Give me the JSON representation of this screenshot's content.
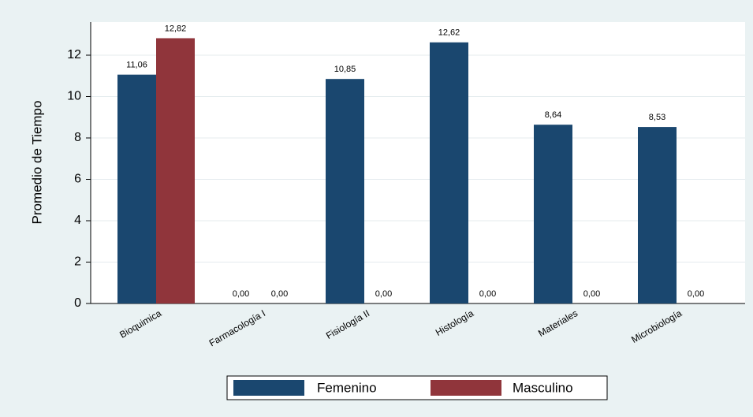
{
  "chart_data": {
    "type": "bar",
    "y_label": "Promedio de Tiempo",
    "categories": [
      "Bioquimica",
      "Farmacología I",
      "Fisiología II",
      "Histología",
      "Materiales",
      "Microbiología"
    ],
    "series": [
      {
        "name": "Femenino",
        "color": "#1a476f",
        "values": [
          11.06,
          0,
          10.85,
          12.62,
          8.64,
          8.53
        ],
        "value_labels": [
          "11,06",
          "0,00",
          "10,85",
          "12,62",
          "8,64",
          "8,53"
        ]
      },
      {
        "name": "Masculino",
        "color": "#90353b",
        "values": [
          12.82,
          0,
          0,
          0,
          0,
          0
        ],
        "value_labels": [
          "12,82",
          "0,00",
          "0,00",
          "0,00",
          "0,00",
          "0,00"
        ]
      }
    ],
    "ylim": [
      0,
      13.6
    ],
    "yticks": [
      0,
      2,
      4,
      6,
      8,
      10,
      12
    ],
    "grid": true,
    "legend": "bottom"
  }
}
